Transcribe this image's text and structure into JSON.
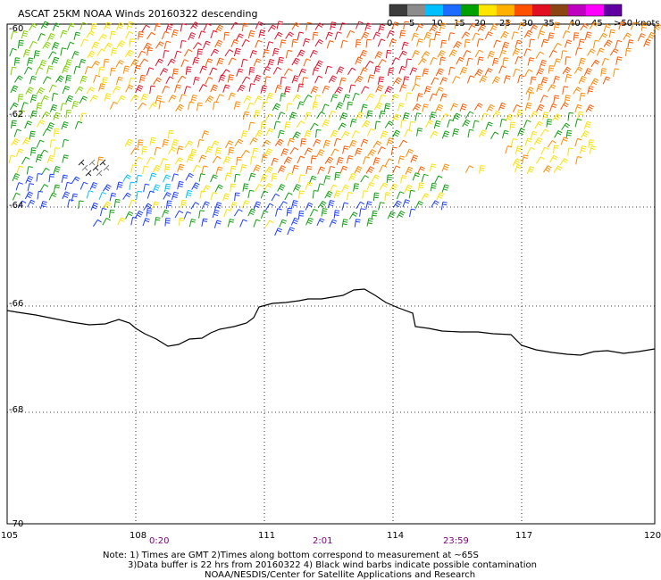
{
  "title": "ASCAT 25KM NOAA Winds 20160322 descending",
  "legend": {
    "labels": [
      "0",
      "5",
      "10",
      "15",
      "20",
      "25",
      "30",
      "35",
      "40",
      "45",
      ">50 knots"
    ],
    "colors": [
      "#3c3c3c",
      "#8c8c8c",
      "#00bfff",
      "#1e6cff",
      "#00a000",
      "#ffe500",
      "#ffb000",
      "#ff5000",
      "#e01020",
      "#8b4513",
      "#c000c0",
      "#ff00ff",
      "#6000a0"
    ]
  },
  "axes": {
    "lat_labels": [
      "-60",
      "-62",
      "-64",
      "-66",
      "-68",
      "-70"
    ],
    "lon_labels": [
      "105",
      "108",
      "111",
      "114",
      "117",
      "120"
    ]
  },
  "pass_times": [
    "0:20",
    "2:01",
    "23:59"
  ],
  "notes": [
    "Note: 1) Times are GMT 2)Times along bottom correspond to measurement at ~65S",
    "3)Data buffer is 22 hrs from 20160322 4) Black wind barbs indicate possible contamination",
    "NOAA/NESDIS/Center for Satellite Applications and Research"
  ],
  "colors": {
    "coast": "#000000",
    "grid": "#000000",
    "time_labels": "#800080"
  }
}
